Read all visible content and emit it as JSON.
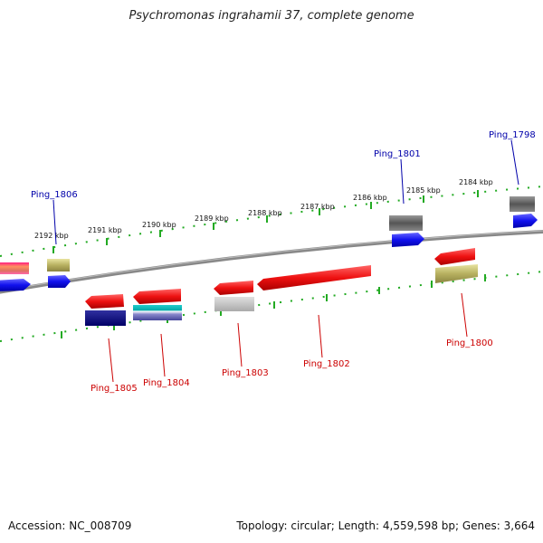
{
  "title": "Psychromonas ingrahamii 37, complete genome",
  "footer": {
    "accession": "Accession: NC_008709",
    "topology": "Topology: circular; Length: 4,559,598 bp; Genes: 3,664"
  },
  "ticks": [
    "2192 kbp",
    "2191 kbp",
    "2190 kbp",
    "2189 kbp",
    "2188 kbp",
    "2187 kbp",
    "2186 kbp",
    "2185 kbp",
    "2184 kbp"
  ],
  "genes": {
    "forward": [
      "Ping_1806",
      "Ping_1801",
      "Ping_1798"
    ],
    "reverse": [
      "Ping_1805",
      "Ping_1804",
      "Ping_1803",
      "Ping_1802",
      "Ping_1800"
    ]
  },
  "colors": {
    "forward_label": "#0000aa",
    "reverse_label": "#cc0000",
    "gene_red": "#ee1111",
    "gene_blue": "#1111ee",
    "backbone": "#888888",
    "tick": "#22aa22"
  }
}
